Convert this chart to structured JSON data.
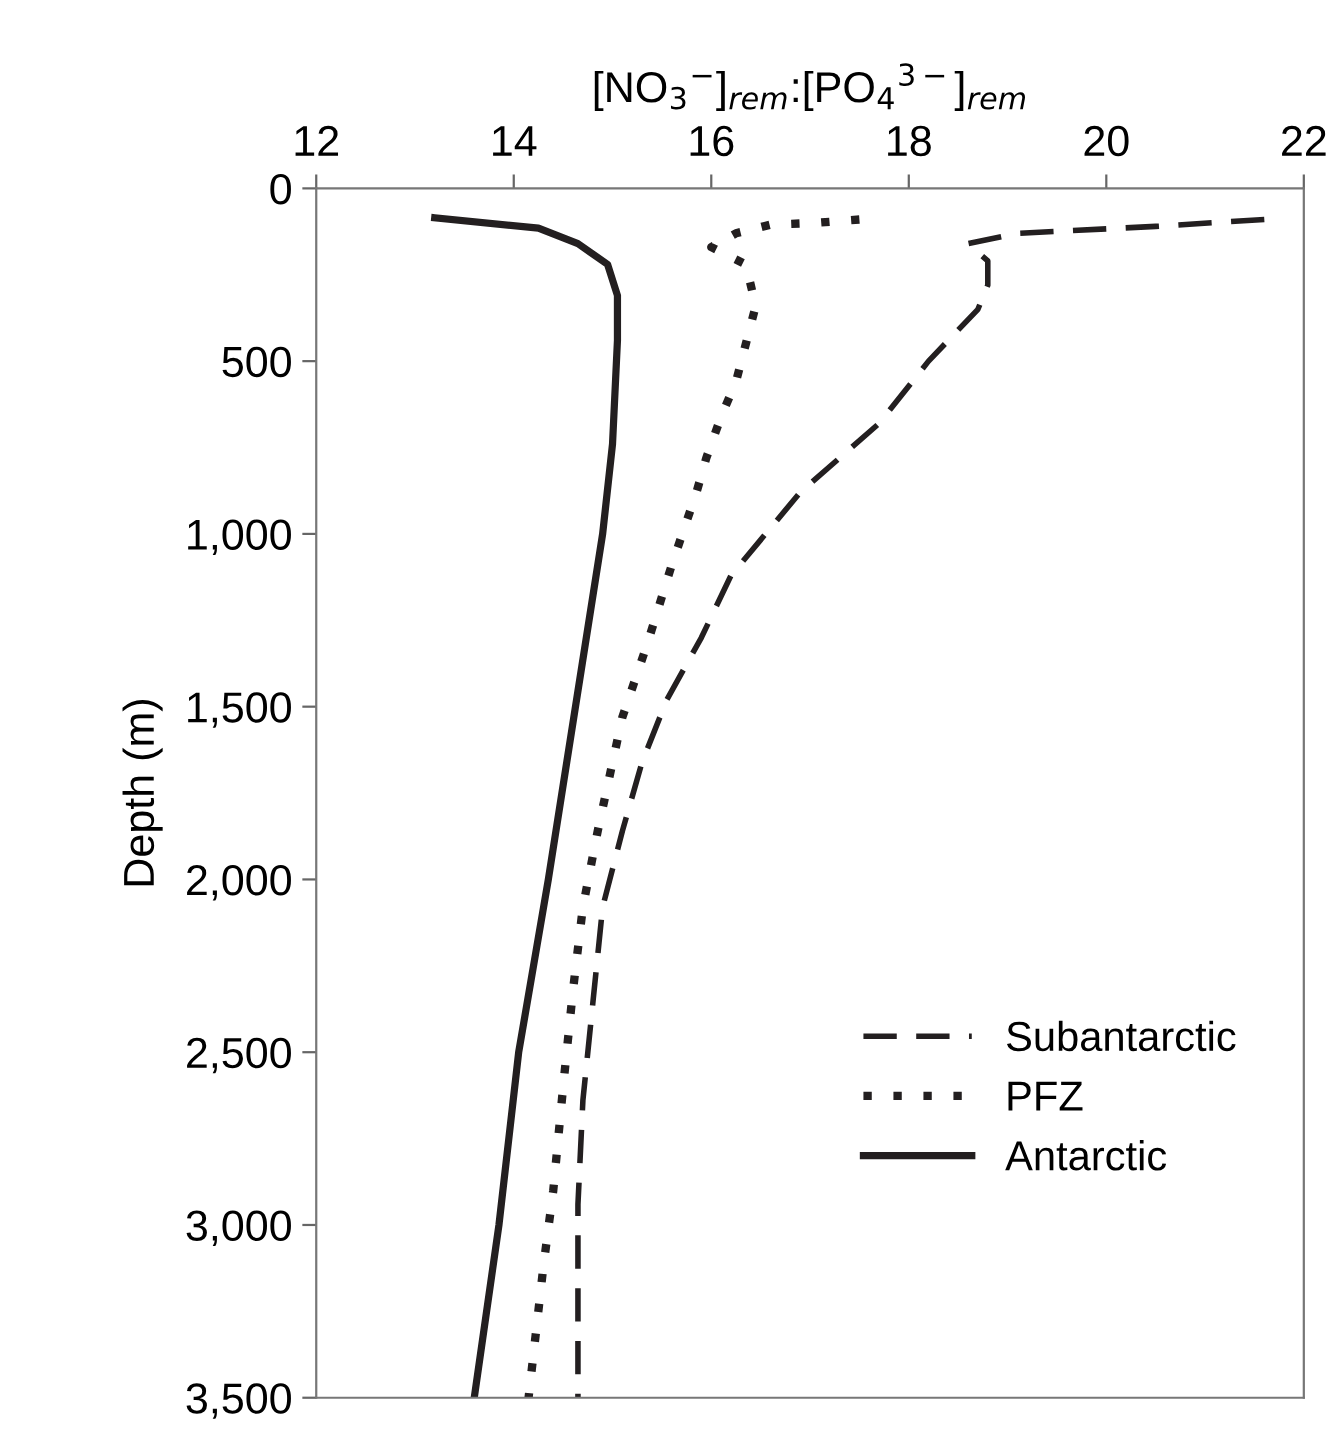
{
  "chart_data": {
    "type": "line",
    "xlabel": "[NO$_{3}$$^{−}$]$_{rem}$:[PO$_{4}$$^{3−}$]$_{rem}$",
    "ylabel": "Depth (m)",
    "xlim": [
      12,
      22
    ],
    "xticks": [
      12,
      14,
      16,
      18,
      20,
      22
    ],
    "ylim": [
      3500,
      0
    ],
    "yticks": [
      {
        "value": 0,
        "label": "0"
      },
      {
        "value": 500,
        "label": "500"
      },
      {
        "value": 1000,
        "label": "1,000"
      },
      {
        "value": 1500,
        "label": "1,500"
      },
      {
        "value": 2000,
        "label": "2,000"
      },
      {
        "value": 2500,
        "label": "2,500"
      },
      {
        "value": 3000,
        "label": "3,000"
      },
      {
        "value": 3500,
        "label": "3,500"
      }
    ],
    "grid": false,
    "legend": "bottom right",
    "marker": "none",
    "series": [
      {
        "name": "Subantarctic",
        "color": "#231f20",
        "line_style": "dashed",
        "x": [
          21.6,
          20.5,
          19.1,
          18.6,
          18.8,
          18.8,
          18.7,
          18.2,
          17.7,
          16.9,
          16.2,
          15.9,
          15.55,
          15.3,
          15.1,
          14.9,
          14.8,
          14.7,
          14.65,
          14.65
        ],
        "values": [
          90,
          110,
          130,
          160,
          210,
          280,
          350,
          500,
          680,
          880,
          1120,
          1300,
          1480,
          1660,
          1860,
          2080,
          2360,
          2640,
          2940,
          3500
        ]
      },
      {
        "name": "PFZ",
        "color": "#231f20",
        "line_style": "dotted",
        "x": [
          17.5,
          17.05,
          16.6,
          16.25,
          16.0,
          16.35,
          16.45,
          16.35,
          16.25,
          16.1,
          15.95,
          15.85,
          15.6,
          15.35,
          15.1,
          14.85,
          14.7,
          14.6,
          14.5,
          14.4,
          14.3,
          14.15
        ],
        "values": [
          90,
          100,
          105,
          130,
          170,
          220,
          340,
          450,
          560,
          660,
          780,
          880,
          1090,
          1320,
          1530,
          1860,
          2080,
          2320,
          2600,
          2900,
          3120,
          3500
        ]
      },
      {
        "name": "Antarctic",
        "color": "#231f20",
        "line_style": "solid",
        "x": [
          13.2,
          14.25,
          14.65,
          14.95,
          15.05,
          15.05,
          15.0,
          14.9,
          14.35,
          14.05,
          13.85,
          13.6
        ],
        "values": [
          85,
          115,
          160,
          220,
          310,
          440,
          740,
          1000,
          2000,
          2500,
          3000,
          3500
        ]
      }
    ]
  }
}
